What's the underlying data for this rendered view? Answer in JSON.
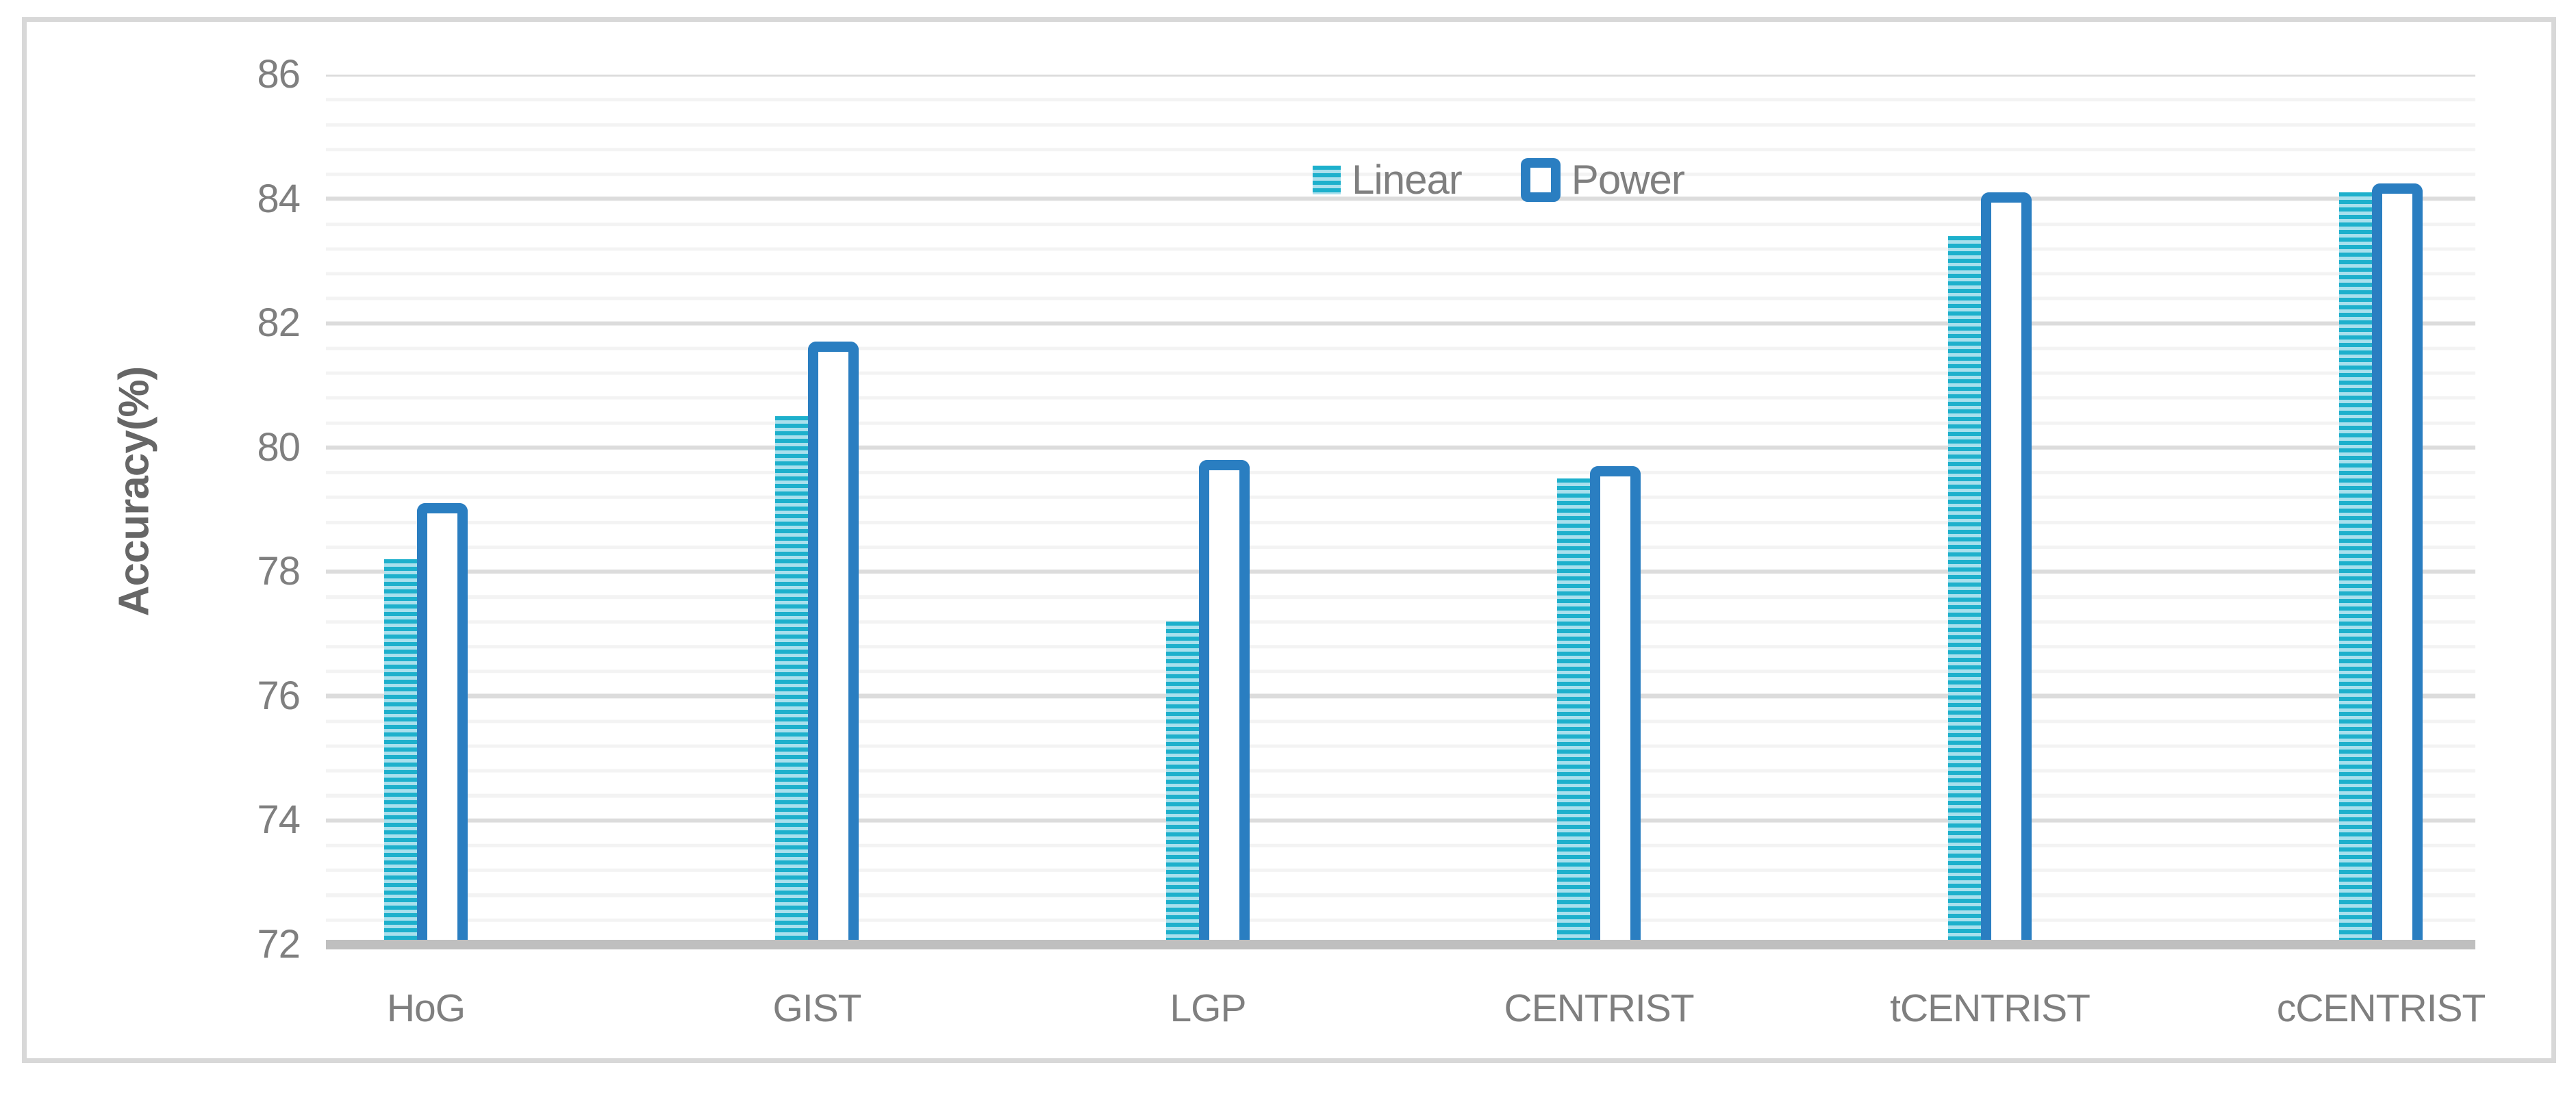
{
  "chart_data": {
    "type": "bar",
    "title": "",
    "categories": [
      "HoG",
      "GIST",
      "LGP",
      "CENTRIST",
      "tCENTRIST",
      "cCENTRIST"
    ],
    "series": [
      {
        "name": "Linear",
        "style": "striped-cyan",
        "values": [
          78.2,
          80.5,
          77.2,
          79.5,
          83.4,
          84.1
        ]
      },
      {
        "name": "Power",
        "style": "outlined-blue",
        "values": [
          79.1,
          81.7,
          79.8,
          79.7,
          84.1,
          84.25
        ]
      }
    ],
    "xlabel": "",
    "ylabel": "Accuracy(%)",
    "ylim": [
      72,
      86
    ],
    "ytick_step": 2,
    "yticks": [
      "86",
      "84",
      "82",
      "80",
      "78",
      "76",
      "74",
      "72"
    ],
    "minor_gridline_unit": 0.4,
    "grid": true,
    "legend_position": "top-center-right"
  },
  "legend": {
    "items": [
      {
        "label": "Linear",
        "swatch": "striped-cyan"
      },
      {
        "label": "Power",
        "swatch": "outlined-blue"
      }
    ]
  },
  "colors": {
    "linear_stripe_dark": "#1db0cc",
    "linear_stripe_light": "#a9e0ed",
    "power_outline": "#2a7ec1",
    "axis_text": "#7f7f7f",
    "y_title_text": "#666666",
    "gridline_major": "#dcdcdc",
    "gridline_minor": "#f3f3f3",
    "axis_baseline": "#bfbfbf",
    "frame_border": "#d8d8d8",
    "background": "#ffffff"
  }
}
